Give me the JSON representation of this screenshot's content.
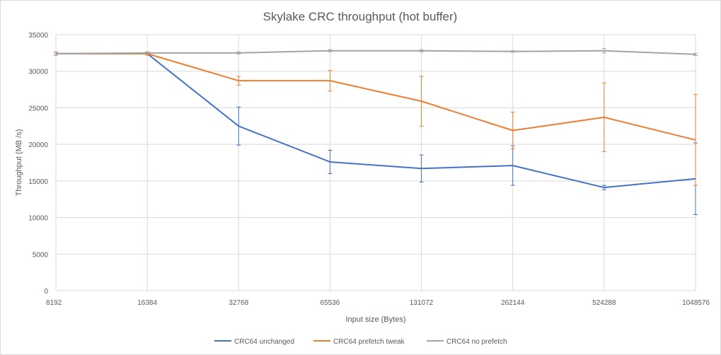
{
  "chart_data": {
    "type": "line",
    "title": "Skylake CRC throughput (hot buffer)",
    "xlabel": "Input size (Bytes)",
    "ylabel": "Throughput (MB /s)",
    "categories": [
      "8192",
      "16384",
      "32768",
      "65536",
      "131072",
      "262144",
      "524288",
      "1048576"
    ],
    "ylim": [
      0,
      35000
    ],
    "yticks": [
      0,
      5000,
      10000,
      15000,
      20000,
      25000,
      30000,
      35000
    ],
    "grid": "vertical and horizontal",
    "legend_position": "bottom",
    "series": [
      {
        "name": "CRC64 unchanged",
        "color": "#4472c4",
        "values": [
          32400,
          32400,
          22500,
          17600,
          16700,
          17100,
          14100,
          15300
        ],
        "error": [
          200,
          200,
          2600,
          1600,
          1850,
          2700,
          300,
          4900
        ]
      },
      {
        "name": "CRC64 prefetch tweak",
        "color": "#ed7d31",
        "values": [
          32400,
          32400,
          28700,
          28700,
          25900,
          21900,
          23700,
          20600
        ],
        "error": [
          200,
          200,
          600,
          1400,
          3400,
          2500,
          4700,
          6200
        ]
      },
      {
        "name": "CRC64 no prefetch",
        "color": "#a5a5a5",
        "values": [
          32400,
          32500,
          32500,
          32800,
          32800,
          32700,
          32800,
          32300
        ],
        "error": [
          150,
          150,
          150,
          150,
          150,
          100,
          300,
          150
        ]
      }
    ]
  }
}
